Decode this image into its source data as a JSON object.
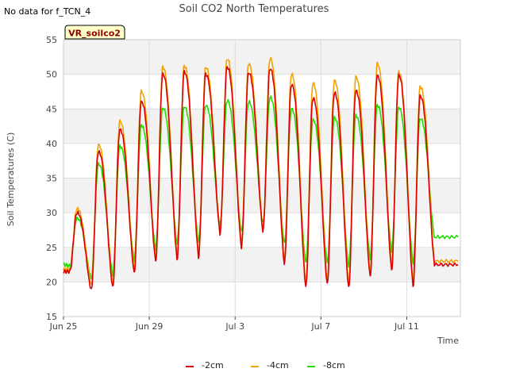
{
  "chart_data": {
    "type": "line",
    "title": "Soil CO2 North Temperatures",
    "note": "No data for f_TCN_4",
    "badge": "VR_soilco2",
    "xlabel": "Time",
    "ylabel": "Soil Temperatures (C)",
    "ylim": [
      15,
      55
    ],
    "yticks": [
      15,
      20,
      25,
      30,
      35,
      40,
      45,
      50,
      55
    ],
    "xlim": [
      "2025-06-25",
      "2025-07-13T12:00"
    ],
    "xticks": [
      {
        "date": "2025-06-25",
        "label": "Jun 25"
      },
      {
        "date": "2025-06-29",
        "label": "Jun 29"
      },
      {
        "date": "2025-07-03",
        "label": "Jul 3"
      },
      {
        "date": "2025-07-07",
        "label": "Jul 7"
      },
      {
        "date": "2025-07-11",
        "label": "Jul 11"
      }
    ],
    "grid": true,
    "legend_position": "bottom",
    "daily_extremes": [
      "2025-06-25",
      "2025-06-26",
      "2025-06-27",
      "2025-06-28",
      "2025-06-29",
      "2025-06-30",
      "2025-07-01",
      "2025-07-02",
      "2025-07-03",
      "2025-07-04",
      "2025-07-05",
      "2025-07-06",
      "2025-07-07",
      "2025-07-08",
      "2025-07-09",
      "2025-07-10",
      "2025-07-11",
      "2025-07-12"
    ],
    "series": [
      {
        "name": "-2cm",
        "color": "#dd0000",
        "start": 21.5,
        "end": 22.5,
        "daily_min": [
          21.5,
          18.8,
          19.2,
          21.3,
          23.0,
          23.3,
          23.6,
          27.0,
          25.0,
          27.3,
          22.5,
          19.2,
          19.6,
          19.1,
          20.7,
          21.7,
          19.4,
          22.5
        ],
        "daily_max": [
          30.0,
          38.8,
          42.0,
          46.0,
          50.0,
          50.3,
          50.0,
          51.0,
          50.2,
          50.8,
          48.5,
          46.5,
          47.3,
          47.6,
          49.8,
          49.8,
          46.8
        ]
      },
      {
        "name": "-4cm",
        "color": "#f5a000",
        "start": 21.8,
        "end": 23.0,
        "daily_min": [
          21.8,
          19.5,
          19.6,
          21.8,
          23.3,
          23.8,
          24.0,
          27.2,
          25.5,
          27.6,
          23.3,
          19.9,
          20.3,
          19.8,
          21.3,
          22.2,
          20.2,
          23.0
        ],
        "daily_max": [
          30.6,
          39.8,
          43.2,
          47.5,
          51.0,
          51.2,
          51.0,
          52.2,
          51.5,
          52.3,
          50.0,
          48.7,
          49.1,
          49.6,
          51.5,
          50.3,
          48.2
        ]
      },
      {
        "name": "-8cm",
        "color": "#22dd00",
        "start": 22.5,
        "end": 26.5,
        "daily_min": [
          22.3,
          20.5,
          21.0,
          23.2,
          24.8,
          25.6,
          25.8,
          28.2,
          27.2,
          28.5,
          25.5,
          22.8,
          22.8,
          22.3,
          23.4,
          24.5,
          22.8,
          26.5
        ],
        "daily_max": [
          29.2,
          37.0,
          39.6,
          42.6,
          45.1,
          45.3,
          45.5,
          46.2,
          46.0,
          46.7,
          45.0,
          43.4,
          43.7,
          44.0,
          45.5,
          45.2,
          43.6
        ]
      }
    ]
  }
}
